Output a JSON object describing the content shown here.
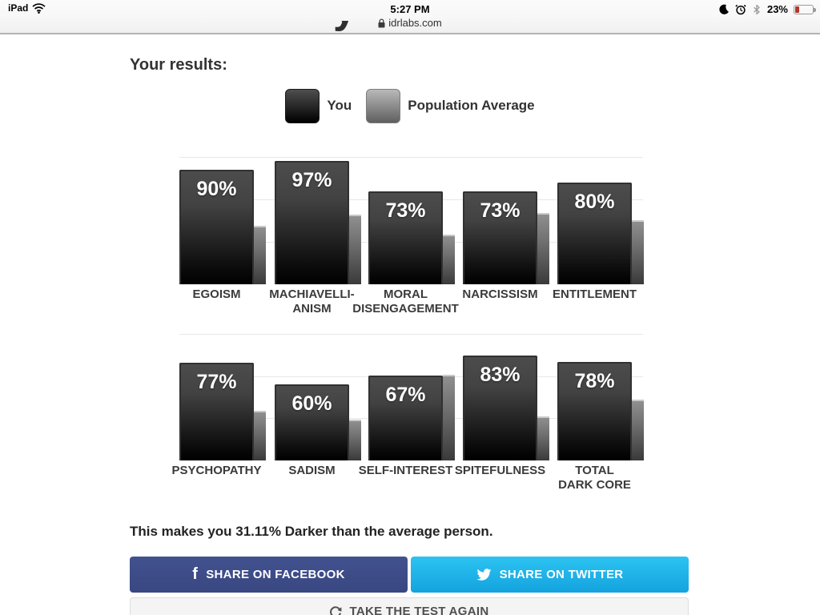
{
  "status_bar": {
    "device": "iPad",
    "time": "5:27 PM",
    "url": "idrlabs.com",
    "battery": "23%",
    "icons": [
      "wifi-icon",
      "do-not-disturb-moon-icon",
      "alarm-icon",
      "bluetooth-icon",
      "battery-icon",
      "lock-icon"
    ]
  },
  "page": {
    "title_visible_fragment": "y",
    "results_heading": "Your results:",
    "legend": {
      "you_label": "You",
      "avg_label": "Population Average",
      "you_color": "#111111",
      "avg_color": "#8a8a8a"
    },
    "summary": "This makes you 31.11% Darker than the average person.",
    "buttons": {
      "facebook": "SHARE ON FACEBOOK",
      "twitter": "SHARE ON TWITTER",
      "retake": "TAKE THE TEST AGAIN"
    }
  },
  "chart_data": [
    {
      "type": "bar",
      "title": "Dark core traits (row 1)",
      "categories": [
        "EGOISM",
        "MACHIAVELLIANISM",
        "MORAL DISENGAGEMENT",
        "NARCISSISM",
        "ENTITLEMENT"
      ],
      "label_lines": [
        [
          "EGOISM"
        ],
        [
          "MACHIAVELLI-",
          "ANISM"
        ],
        [
          "MORAL",
          "DISENGAGEMENT"
        ],
        [
          "NARCISSISM"
        ],
        [
          "ENTITLEMENT"
        ]
      ],
      "series": [
        {
          "name": "You",
          "values": [
            90,
            97,
            73,
            73,
            80
          ]
        },
        {
          "name": "Population Average",
          "values": [
            46,
            55,
            39,
            56,
            50
          ]
        }
      ],
      "value_labels": [
        "90%",
        "97%",
        "73%",
        "73%",
        "80%"
      ],
      "ylim": [
        0,
        100
      ],
      "gridlines_percent": [
        33.3,
        66.7,
        100
      ],
      "legend_position": "top",
      "grid": true
    },
    {
      "type": "bar",
      "title": "Dark core traits (row 2)",
      "categories": [
        "PSYCHOPATHY",
        "SADISM",
        "SELF-INTEREST",
        "SPITEFULNESS",
        "TOTAL DARK CORE"
      ],
      "label_lines": [
        [
          "PSYCHOPATHY"
        ],
        [
          "SADISM"
        ],
        [
          "SELF-INTEREST"
        ],
        [
          "SPITEFULNESS"
        ],
        [
          "TOTAL",
          "DARK CORE"
        ]
      ],
      "series": [
        {
          "name": "You",
          "values": [
            77,
            60,
            67,
            83,
            78
          ]
        },
        {
          "name": "Population Average",
          "values": [
            39,
            32,
            68,
            35,
            48
          ]
        }
      ],
      "value_labels": [
        "77%",
        "60%",
        "67%",
        "83%",
        "78%"
      ],
      "ylim": [
        0,
        100
      ],
      "gridlines_percent": [
        33.3,
        66.7,
        100
      ],
      "legend_position": "top",
      "grid": true
    }
  ]
}
